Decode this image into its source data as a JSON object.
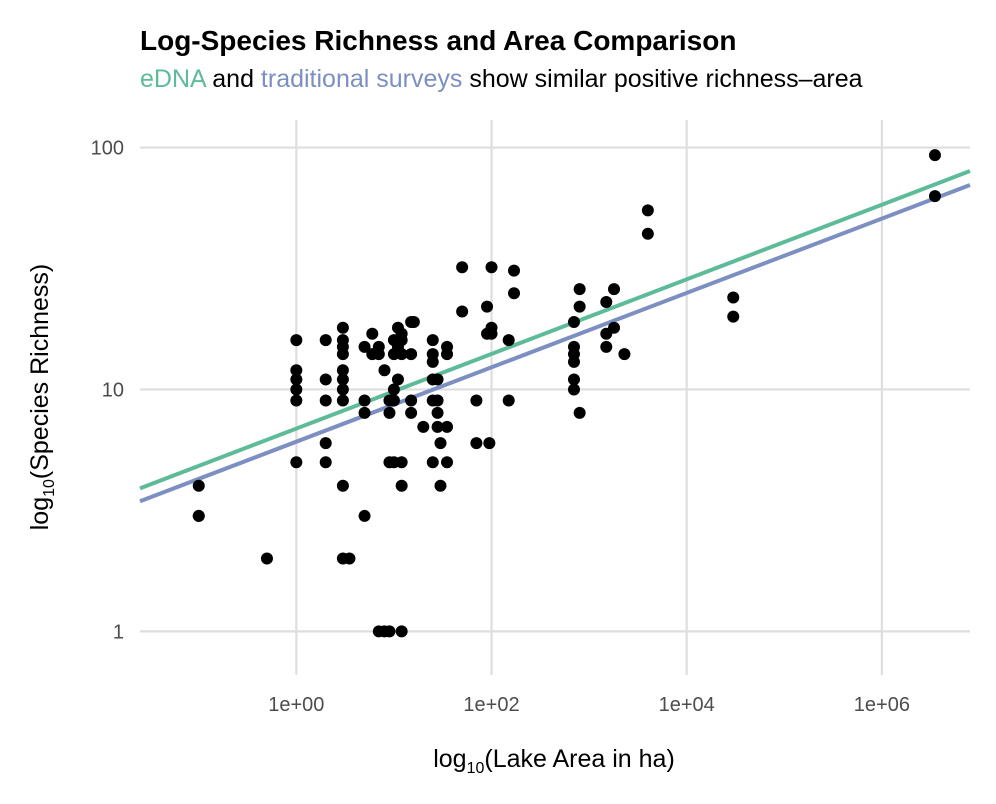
{
  "chart_data": {
    "type": "scatter",
    "title": "Log-Species Richness and Area Comparison",
    "subtitle": {
      "series_a": "eDNA",
      "connector": " and ",
      "series_b": "traditional surveys",
      "rest": " show similar positive richness–area"
    },
    "xlabel": {
      "prefix": "log",
      "sub": "10",
      "rest": "(Lake Area in ha)"
    },
    "ylabel": {
      "prefix": "log",
      "sub": "10",
      "rest": "(Species Richness)"
    },
    "x_scale": "log10",
    "y_scale": "log10",
    "xlim": [
      0.025,
      8000000
    ],
    "ylim": [
      0.66,
      130
    ],
    "x_ticks": [
      {
        "value": 1,
        "label": "1e+00"
      },
      {
        "value": 100,
        "label": "1e+02"
      },
      {
        "value": 10000,
        "label": "1e+04"
      },
      {
        "value": 1000000,
        "label": "1e+06"
      }
    ],
    "y_ticks": [
      {
        "value": 1,
        "label": "1"
      },
      {
        "value": 10,
        "label": "10"
      },
      {
        "value": 100,
        "label": "100"
      }
    ],
    "grid": true,
    "colors": {
      "edna": "#5dbb98",
      "traditional": "#7b8fc0",
      "points": "#000000"
    },
    "fit_lines": [
      {
        "series": "eDNA",
        "color": "#5dbb98",
        "x": [
          0.025,
          8000000
        ],
        "y": [
          3.9,
          80
        ]
      },
      {
        "series": "traditional surveys",
        "color": "#7b8fc0",
        "x": [
          0.025,
          8000000
        ],
        "y": [
          3.45,
          70
        ]
      }
    ],
    "points": [
      [
        0.1,
        4
      ],
      [
        0.1,
        3
      ],
      [
        0.1,
        3
      ],
      [
        0.5,
        2
      ],
      [
        1,
        16
      ],
      [
        1,
        12
      ],
      [
        1,
        11
      ],
      [
        1,
        10
      ],
      [
        1,
        9
      ],
      [
        1,
        5
      ],
      [
        2,
        16
      ],
      [
        2,
        11
      ],
      [
        2,
        9
      ],
      [
        2,
        6
      ],
      [
        2,
        5
      ],
      [
        3,
        18
      ],
      [
        3,
        16
      ],
      [
        3,
        15
      ],
      [
        3,
        14
      ],
      [
        3,
        12
      ],
      [
        3,
        11
      ],
      [
        3,
        10
      ],
      [
        3,
        9
      ],
      [
        3,
        4
      ],
      [
        3,
        2
      ],
      [
        3.5,
        2
      ],
      [
        5,
        15
      ],
      [
        5,
        9
      ],
      [
        5,
        8
      ],
      [
        5,
        3
      ],
      [
        6,
        17
      ],
      [
        6,
        14
      ],
      [
        7,
        15
      ],
      [
        7,
        14
      ],
      [
        7,
        1
      ],
      [
        8,
        12
      ],
      [
        8,
        1
      ],
      [
        9,
        9
      ],
      [
        9,
        8
      ],
      [
        9,
        5
      ],
      [
        9,
        1
      ],
      [
        10,
        16
      ],
      [
        10,
        14
      ],
      [
        10,
        10
      ],
      [
        10,
        9
      ],
      [
        10,
        5
      ],
      [
        11,
        18
      ],
      [
        11,
        15
      ],
      [
        11,
        11
      ],
      [
        12,
        17
      ],
      [
        12,
        16
      ],
      [
        12,
        14
      ],
      [
        12,
        5
      ],
      [
        12,
        4
      ],
      [
        12,
        1
      ],
      [
        15,
        19
      ],
      [
        15,
        14
      ],
      [
        15,
        9
      ],
      [
        15,
        8
      ],
      [
        16,
        19
      ],
      [
        20,
        7
      ],
      [
        25,
        16
      ],
      [
        25,
        14
      ],
      [
        25,
        13
      ],
      [
        25,
        11
      ],
      [
        25,
        9
      ],
      [
        25,
        5
      ],
      [
        28,
        11
      ],
      [
        28,
        9
      ],
      [
        28,
        8
      ],
      [
        28,
        7
      ],
      [
        30,
        6
      ],
      [
        30,
        4
      ],
      [
        35,
        15
      ],
      [
        35,
        14
      ],
      [
        35,
        7
      ],
      [
        35,
        5
      ],
      [
        50,
        32
      ],
      [
        50,
        21
      ],
      [
        70,
        9
      ],
      [
        70,
        6
      ],
      [
        90,
        22
      ],
      [
        90,
        17
      ],
      [
        95,
        6
      ],
      [
        100,
        32
      ],
      [
        100,
        18
      ],
      [
        100,
        17
      ],
      [
        150,
        16
      ],
      [
        150,
        9
      ],
      [
        170,
        31
      ],
      [
        170,
        25
      ],
      [
        700,
        19
      ],
      [
        700,
        15
      ],
      [
        700,
        14
      ],
      [
        700,
        13
      ],
      [
        700,
        11
      ],
      [
        700,
        10
      ],
      [
        800,
        26
      ],
      [
        800,
        22
      ],
      [
        800,
        8
      ],
      [
        1500,
        23
      ],
      [
        1500,
        17
      ],
      [
        1500,
        15
      ],
      [
        1800,
        26
      ],
      [
        1800,
        18
      ],
      [
        2300,
        14
      ],
      [
        4000,
        55
      ],
      [
        4000,
        44
      ],
      [
        30000,
        24
      ],
      [
        30000,
        20
      ],
      [
        3500000,
        93
      ],
      [
        3500000,
        63
      ]
    ]
  }
}
